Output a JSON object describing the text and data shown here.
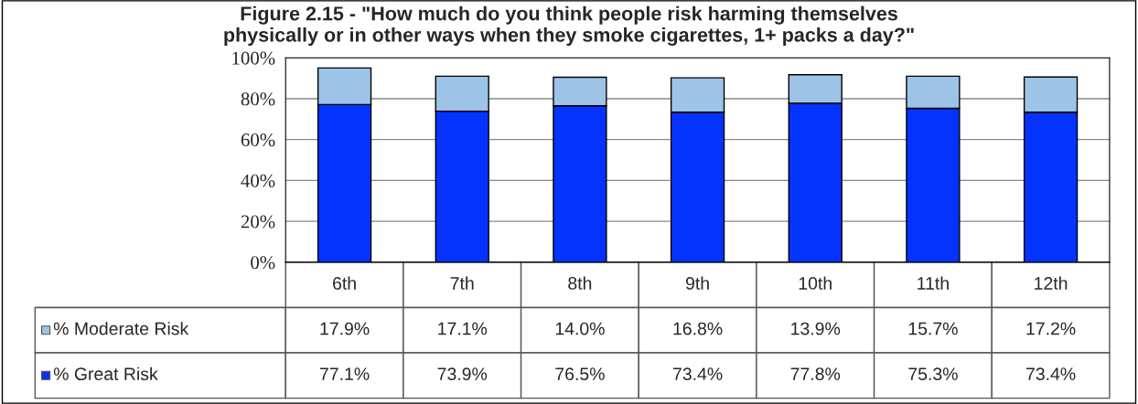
{
  "chart_data": {
    "type": "bar",
    "stacked": true,
    "title": "Figure 2.15 - \"How much do you think people risk harming themselves\nphysically or in other ways when they smoke cigarettes, 1+ packs a day?\"",
    "categories": [
      "6th",
      "7th",
      "8th",
      "9th",
      "10th",
      "11th",
      "12th"
    ],
    "series": [
      {
        "name": "% Great Risk",
        "color": "#0433ff",
        "values": [
          77.1,
          73.9,
          76.5,
          73.4,
          77.8,
          75.3,
          73.4
        ],
        "value_labels": [
          "77.1%",
          "73.9%",
          "76.5%",
          "73.4%",
          "77.8%",
          "75.3%",
          "73.4%"
        ]
      },
      {
        "name": "% Moderate Risk",
        "color": "#9dc3e6",
        "values": [
          17.9,
          17.1,
          14.0,
          16.8,
          13.9,
          15.7,
          17.2
        ],
        "value_labels": [
          "17.9%",
          "17.1%",
          "14.0%",
          "16.8%",
          "13.9%",
          "15.7%",
          "17.2%"
        ]
      }
    ],
    "ylim": [
      0,
      100
    ],
    "yticks": [
      {
        "value": 0,
        "label": "0%"
      },
      {
        "value": 20,
        "label": "20%"
      },
      {
        "value": 40,
        "label": "40%"
      },
      {
        "value": 60,
        "label": "60%"
      },
      {
        "value": 80,
        "label": "80%"
      },
      {
        "value": 100,
        "label": "100%"
      }
    ],
    "grid": "y",
    "legend": "bottom"
  }
}
